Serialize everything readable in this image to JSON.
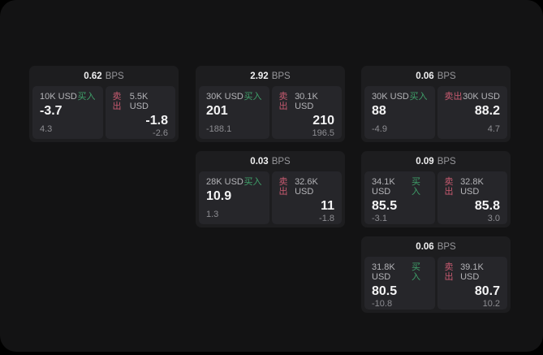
{
  "labels": {
    "bps_unit": "BPS",
    "buy": "买入",
    "sell": "卖出"
  },
  "colors": {
    "buy_green": "#3fa06a",
    "sell_red": "#c75a70",
    "surface": "#131314",
    "card_bg": "#1d1d1f",
    "panel_bg": "#26262a"
  },
  "cards": [
    {
      "row": 1,
      "col": 1,
      "bps": "0.62",
      "buy": {
        "size": "10K USD",
        "value": "-3.7",
        "sub": "4.3"
      },
      "sell": {
        "size": "5.5K USD",
        "value": "-1.8",
        "sub": "-2.6"
      }
    },
    {
      "row": 1,
      "col": 2,
      "bps": "2.92",
      "buy": {
        "size": "30K USD",
        "value": "201",
        "sub": "-188.1"
      },
      "sell": {
        "size": "30.1K USD",
        "value": "210",
        "sub": "196.5"
      }
    },
    {
      "row": 1,
      "col": 3,
      "bps": "0.06",
      "buy": {
        "size": "30K USD",
        "value": "88",
        "sub": "-4.9"
      },
      "sell": {
        "size": "30K USD",
        "value": "88.2",
        "sub": "4.7"
      }
    },
    {
      "row": 2,
      "col": 2,
      "bps": "0.03",
      "buy": {
        "size": "28K USD",
        "value": "10.9",
        "sub": "1.3"
      },
      "sell": {
        "size": "32.6K USD",
        "value": "11",
        "sub": "-1.8"
      }
    },
    {
      "row": 2,
      "col": 3,
      "bps": "0.09",
      "buy": {
        "size": "34.1K USD",
        "value": "85.5",
        "sub": "-3.1"
      },
      "sell": {
        "size": "32.8K USD",
        "value": "85.8",
        "sub": "3.0"
      }
    },
    {
      "row": 3,
      "col": 3,
      "bps": "0.06",
      "buy": {
        "size": "31.8K USD",
        "value": "80.5",
        "sub": "-10.8"
      },
      "sell": {
        "size": "39.1K USD",
        "value": "80.7",
        "sub": "10.2"
      }
    }
  ]
}
